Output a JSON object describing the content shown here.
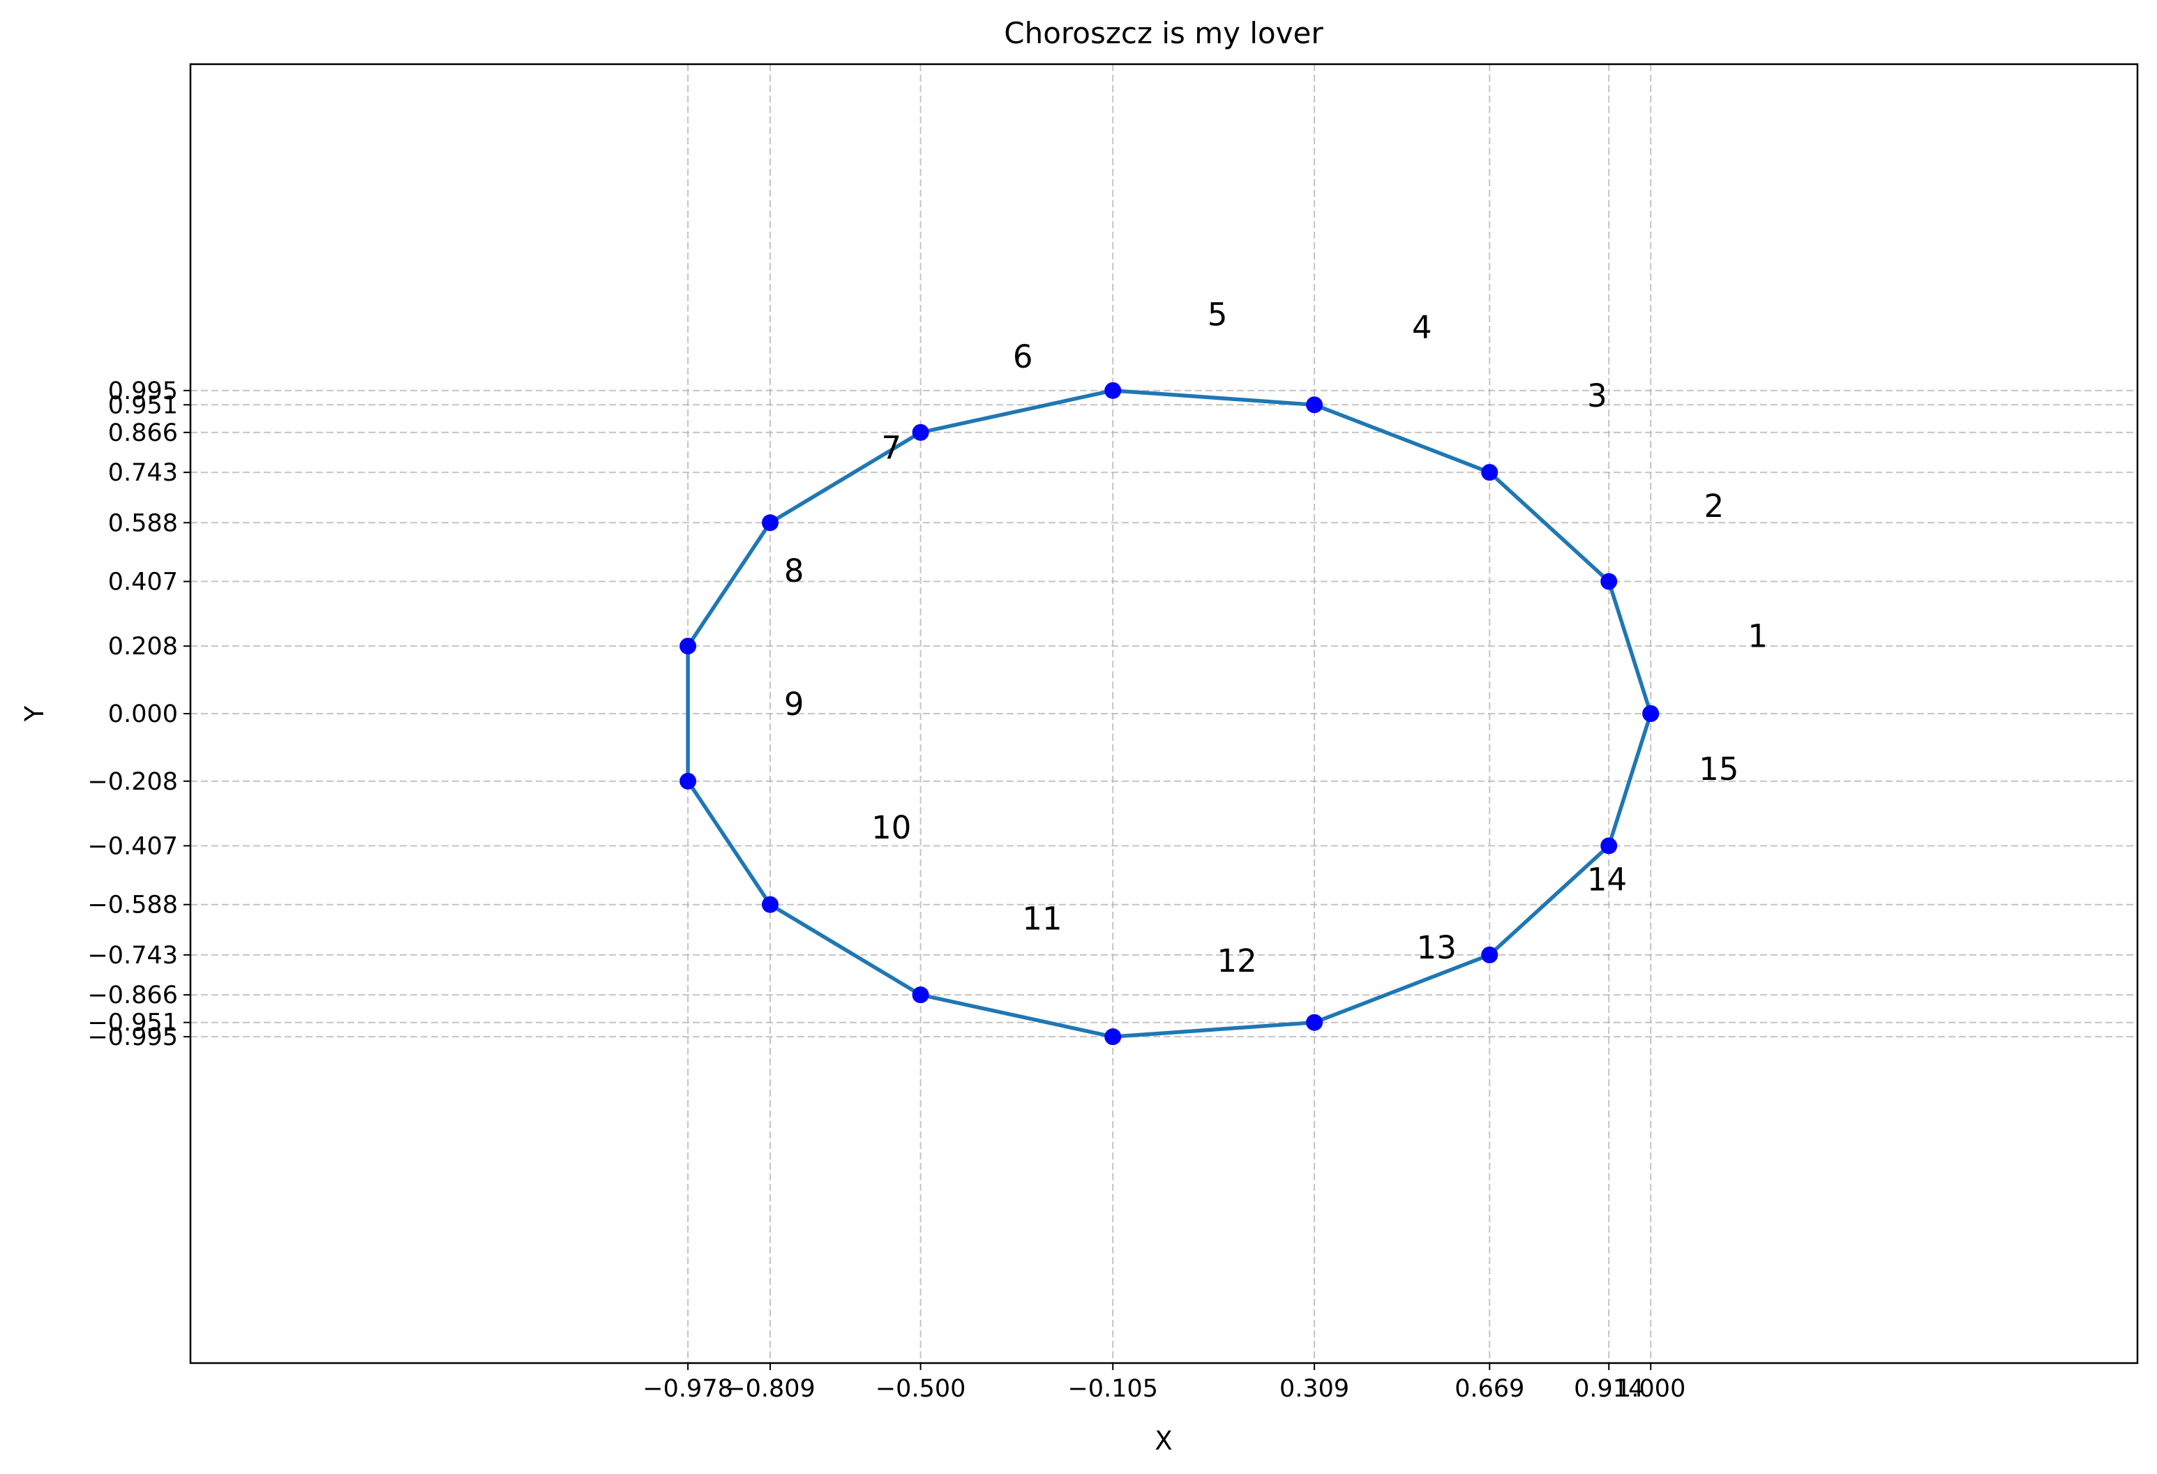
{
  "chart_data": {
    "type": "line",
    "title": "Choroszcz is my lover",
    "xlabel": "X",
    "ylabel": "Y",
    "xlim": [
      -2.0,
      2.0
    ],
    "ylim": [
      -2.0,
      2.0
    ],
    "grid": true,
    "line_color": "#1f77b4",
    "marker_color": "#0000ff",
    "grid_color": "#b0b0b0",
    "xticks": [
      -0.978,
      -0.809,
      -0.5,
      -0.105,
      0.309,
      0.669,
      0.914,
      1.0
    ],
    "xtick_labels": [
      "−0.978",
      "−0.809",
      "−0.500",
      "−0.105",
      "0.309",
      "0.669",
      "0.914",
      "1.000"
    ],
    "yticks": [
      0.995,
      0.951,
      0.866,
      0.743,
      0.588,
      0.407,
      0.208,
      0.0,
      -0.208,
      -0.407,
      -0.588,
      -0.743,
      -0.866,
      -0.951,
      -0.995
    ],
    "ytick_labels": [
      "0.995",
      "0.951",
      "0.866",
      "0.743",
      "0.588",
      "0.407",
      "0.208",
      "0.000",
      "−0.208",
      "−0.407",
      "−0.588",
      "−0.743",
      "−0.866",
      "−0.951",
      "−0.995"
    ],
    "series": [
      {
        "x": [
          1.0,
          0.914,
          0.669,
          0.309,
          -0.105,
          -0.5,
          -0.809,
          -0.978,
          -0.978,
          -0.809,
          -0.5,
          -0.105,
          0.309,
          0.669,
          0.914,
          1.0
        ],
        "y": [
          0.0,
          0.407,
          0.743,
          0.951,
          0.995,
          0.866,
          0.588,
          0.208,
          -0.208,
          -0.588,
          -0.866,
          -0.995,
          -0.951,
          -0.743,
          -0.407,
          0.0
        ]
      }
    ],
    "annotations": [
      {
        "text": "1",
        "x": 1.22,
        "y": 0.24
      },
      {
        "text": "2",
        "x": 1.13,
        "y": 0.64
      },
      {
        "text": "3",
        "x": 0.89,
        "y": 0.98
      },
      {
        "text": "4",
        "x": 0.53,
        "y": 1.19
      },
      {
        "text": "5",
        "x": 0.11,
        "y": 1.23
      },
      {
        "text": "6",
        "x": -0.29,
        "y": 1.1
      },
      {
        "text": "7",
        "x": -0.56,
        "y": 0.82
      },
      {
        "text": "8",
        "x": -0.76,
        "y": 0.44
      },
      {
        "text": "9",
        "x": -0.76,
        "y": 0.03
      },
      {
        "text": "10",
        "x": -0.56,
        "y": -0.35
      },
      {
        "text": "11",
        "x": -0.25,
        "y": -0.63
      },
      {
        "text": "12",
        "x": 0.15,
        "y": -0.76
      },
      {
        "text": "13",
        "x": 0.56,
        "y": -0.72
      },
      {
        "text": "14",
        "x": 0.91,
        "y": -0.51
      },
      {
        "text": "15",
        "x": 1.14,
        "y": -0.17
      }
    ]
  }
}
